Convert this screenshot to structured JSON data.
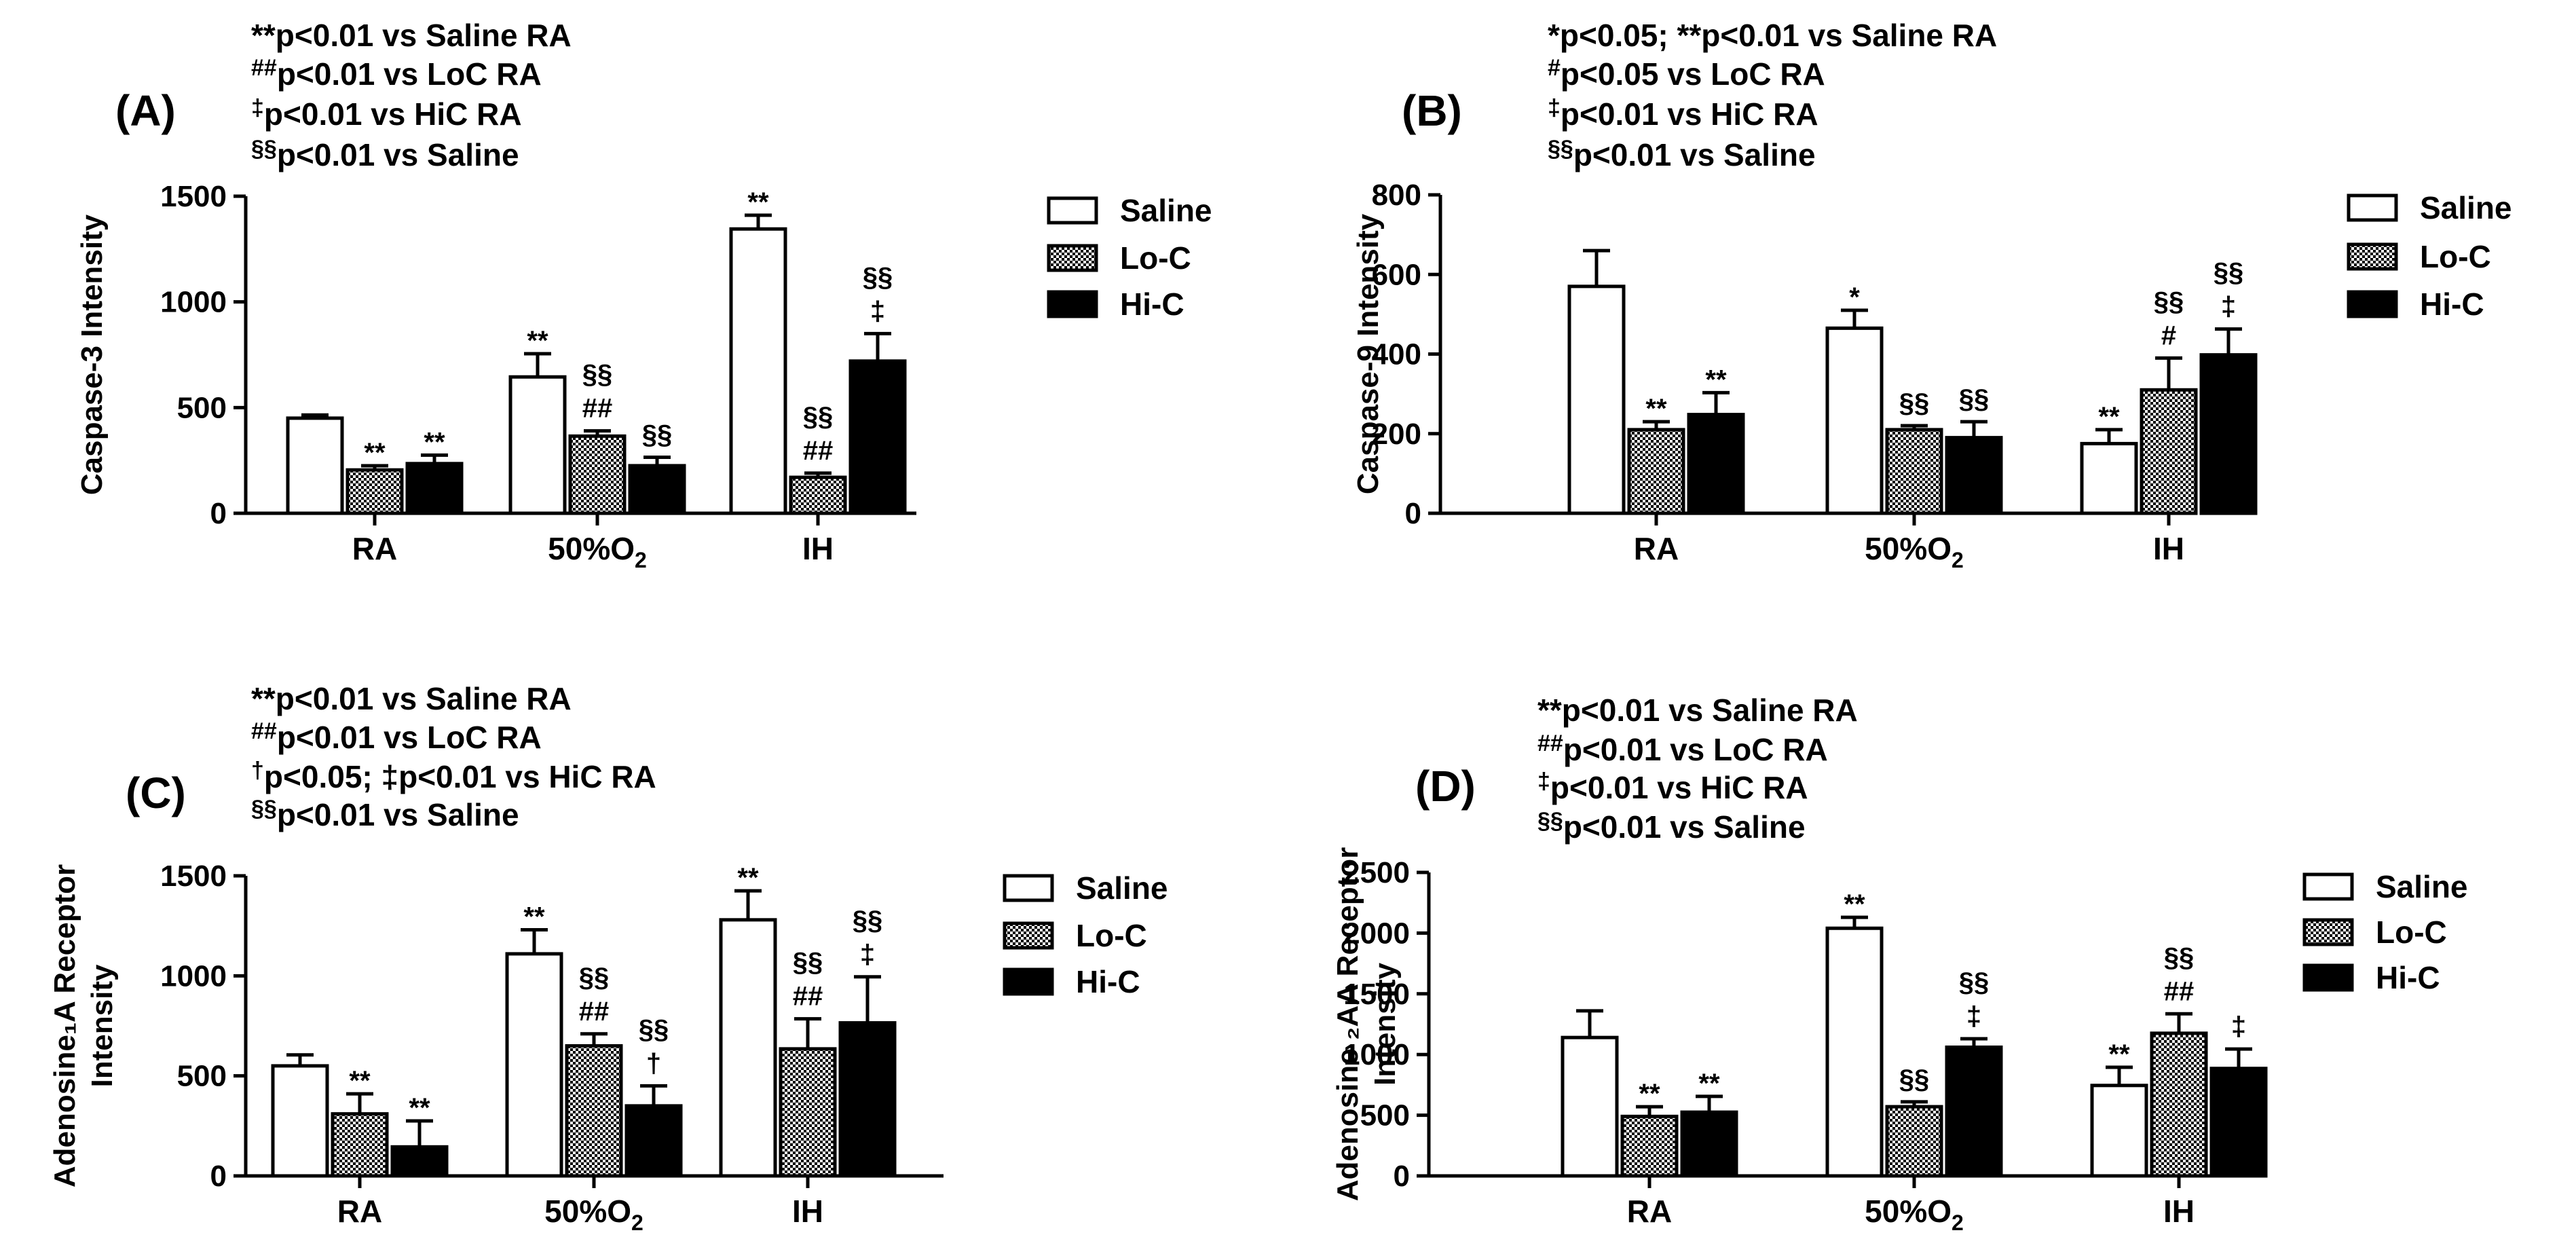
{
  "chart_data": [
    {
      "type": "bar",
      "panel": "(A)",
      "notes": [
        "**p<0.01 vs Saline RA",
        "##p<0.01 vs LoC RA",
        "‡p<0.01 vs HiC RA",
        "§§p<0.01 vs Saline"
      ],
      "ylabel": "Caspase-3  Intensity",
      "ylim": [
        0,
        1500
      ],
      "yticks": [
        "0",
        "500",
        "1000",
        "1500"
      ],
      "categories": [
        "RA",
        "50%O2",
        "IH"
      ],
      "series": [
        {
          "name": "Saline",
          "values": [
            450,
            645,
            1345
          ],
          "errors": [
            15,
            110,
            65
          ],
          "annotations": [
            "",
            "**",
            "**"
          ]
        },
        {
          "name": "Lo-C",
          "values": [
            205,
            365,
            170
          ],
          "errors": [
            20,
            25,
            20
          ],
          "annotations": [
            "**",
            "§§\n##",
            "§§\n##"
          ]
        },
        {
          "name": "Hi-C",
          "values": [
            235,
            225,
            720
          ],
          "errors": [
            40,
            40,
            130
          ],
          "annotations": [
            "**",
            "§§",
            "§§\n‡"
          ]
        }
      ]
    },
    {
      "type": "bar",
      "panel": "(B)",
      "notes": [
        "*p<0.05; **p<0.01 vs Saline RA",
        "#p<0.05 vs LoC RA",
        "‡p<0.01 vs HiC RA",
        "§§p<0.01 vs Saline"
      ],
      "ylabel": "Caspase-9  Intensity",
      "ylim": [
        0,
        800
      ],
      "yticks": [
        "0",
        "200",
        "400",
        "600",
        "800"
      ],
      "categories": [
        "RA",
        "50%O2",
        "IH"
      ],
      "series": [
        {
          "name": "Saline",
          "values": [
            570,
            465,
            175
          ],
          "errors": [
            90,
            45,
            35
          ],
          "annotations": [
            "",
            "*",
            "**"
          ]
        },
        {
          "name": "Lo-C",
          "values": [
            210,
            210,
            310
          ],
          "errors": [
            20,
            10,
            80
          ],
          "annotations": [
            "**",
            "§§",
            "§§\n#"
          ]
        },
        {
          "name": "Hi-C",
          "values": [
            248,
            190,
            398
          ],
          "errors": [
            55,
            40,
            65
          ],
          "annotations": [
            "**",
            "§§",
            "§§\n‡"
          ]
        }
      ]
    },
    {
      "type": "bar",
      "panel": "(C)",
      "notes": [
        "**p<0.01 vs Saline RA",
        "##p<0.01 vs LoC RA",
        "†p<0.05; ‡p<0.01 vs HiC RA",
        "§§p<0.01 vs Saline"
      ],
      "ylabel": [
        "Adenosine₁A Receptor",
        "Intensity"
      ],
      "ylim": [
        0,
        1500
      ],
      "yticks": [
        "0",
        "500",
        "1000",
        "1500"
      ],
      "categories": [
        "RA",
        "50%O2",
        "IH"
      ],
      "series": [
        {
          "name": "Saline",
          "values": [
            550,
            1110,
            1280
          ],
          "errors": [
            55,
            120,
            145
          ],
          "annotations": [
            "",
            "**",
            "**"
          ]
        },
        {
          "name": "Lo-C",
          "values": [
            310,
            650,
            635
          ],
          "errors": [
            100,
            60,
            150
          ],
          "annotations": [
            "**",
            "§§\n##",
            "§§\n##"
          ]
        },
        {
          "name": "Hi-C",
          "values": [
            145,
            350,
            765
          ],
          "errors": [
            130,
            100,
            230
          ],
          "annotations": [
            "**",
            "§§\n†",
            "§§\n‡"
          ]
        }
      ]
    },
    {
      "type": "bar",
      "panel": "(D)",
      "notes": [
        "**p<0.01 vs Saline RA",
        "##p<0.01 vs LoC RA",
        "‡p<0.01 vs HiC RA",
        "§§p<0.01 vs Saline"
      ],
      "ylabel": [
        "Adenosine ₂AA Receptor",
        "Intensity"
      ],
      "ylim": [
        0,
        2500
      ],
      "yticks": [
        "0",
        "500",
        "1000",
        "1500",
        "2000",
        "2500"
      ],
      "categories": [
        "RA",
        "50%O2",
        "IH"
      ],
      "series": [
        {
          "name": "Saline",
          "values": [
            1140,
            2040,
            745
          ],
          "errors": [
            220,
            90,
            150
          ],
          "annotations": [
            "",
            "**",
            "**"
          ]
        },
        {
          "name": "Lo-C",
          "values": [
            490,
            570,
            1175
          ],
          "errors": [
            80,
            40,
            160
          ],
          "annotations": [
            "**",
            "§§",
            "§§\n##"
          ]
        },
        {
          "name": "Hi-C",
          "values": [
            525,
            1060,
            885
          ],
          "errors": [
            130,
            70,
            160
          ],
          "annotations": [
            "**",
            "§§\n‡",
            "‡"
          ]
        }
      ]
    }
  ]
}
